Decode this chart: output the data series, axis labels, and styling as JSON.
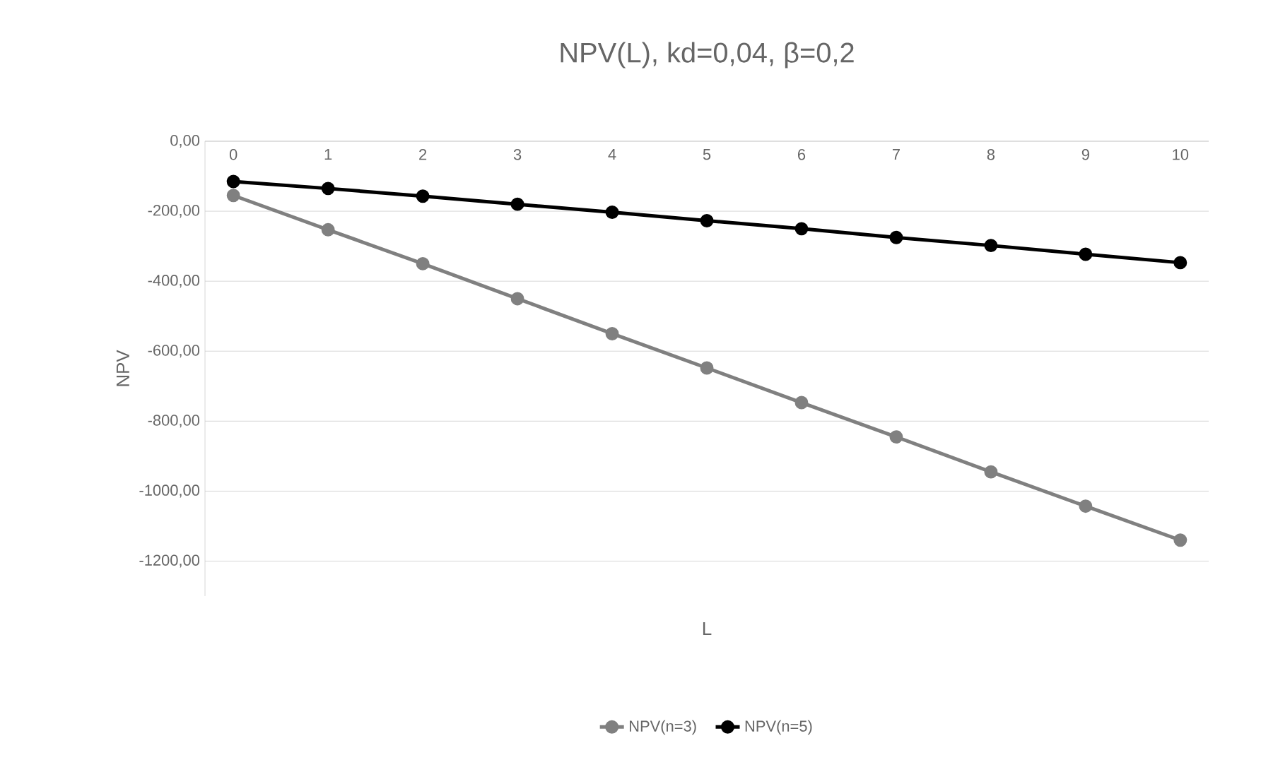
{
  "chart_data": {
    "type": "line",
    "title": "NPV(L), kd=0,04, β=0,2",
    "xlabel": "L",
    "ylabel": "NPV",
    "categories": [
      "0",
      "1",
      "2",
      "3",
      "4",
      "5",
      "6",
      "7",
      "8",
      "9",
      "10"
    ],
    "series": [
      {
        "name": "NPV(n=3)",
        "color": "#808080",
        "values": [
          -155,
          -253,
          -350,
          -450,
          -550,
          -648,
          -747,
          -845,
          -945,
          -1043,
          -1140
        ]
      },
      {
        "name": "NPV(n=5)",
        "color": "#000000",
        "values": [
          -115,
          -135,
          -157,
          -180,
          -203,
          -227,
          -250,
          -275,
          -298,
          -323,
          -347
        ]
      }
    ],
    "ylim": [
      -1300,
      0
    ],
    "yticks": [
      {
        "value": 0,
        "label": "0,00"
      },
      {
        "value": -200,
        "label": "-200,00"
      },
      {
        "value": -400,
        "label": "-400,00"
      },
      {
        "value": -600,
        "label": "-600,00"
      },
      {
        "value": -800,
        "label": "-800,00"
      },
      {
        "value": -1000,
        "label": "-1000,00"
      },
      {
        "value": -1200,
        "label": "-1200,00"
      }
    ],
    "grid": "y",
    "legend": "bottom",
    "marker": "circle",
    "line_style": "solid"
  }
}
